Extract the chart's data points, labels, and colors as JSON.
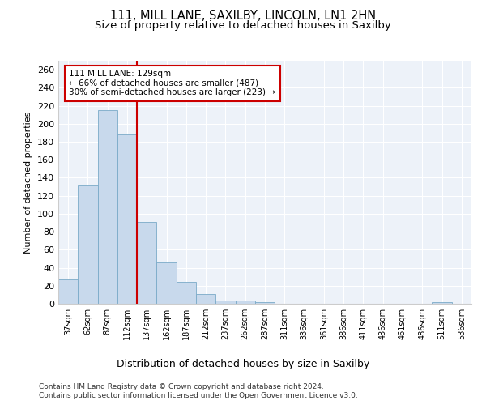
{
  "title1": "111, MILL LANE, SAXILBY, LINCOLN, LN1 2HN",
  "title2": "Size of property relative to detached houses in Saxilby",
  "xlabel": "Distribution of detached houses by size in Saxilby",
  "ylabel": "Number of detached properties",
  "categories": [
    "37sqm",
    "62sqm",
    "87sqm",
    "112sqm",
    "137sqm",
    "162sqm",
    "187sqm",
    "212sqm",
    "237sqm",
    "262sqm",
    "287sqm",
    "311sqm",
    "336sqm",
    "361sqm",
    "386sqm",
    "411sqm",
    "436sqm",
    "461sqm",
    "486sqm",
    "511sqm",
    "536sqm"
  ],
  "values": [
    27,
    131,
    215,
    188,
    91,
    46,
    24,
    11,
    4,
    4,
    2,
    0,
    0,
    0,
    0,
    0,
    0,
    0,
    0,
    2,
    0
  ],
  "bar_color": "#c8d9ec",
  "bar_edge_color": "#7aaac8",
  "vline_x": 3.5,
  "vline_color": "#cc0000",
  "annotation_text": "111 MILL LANE: 129sqm\n← 66% of detached houses are smaller (487)\n30% of semi-detached houses are larger (223) →",
  "annotation_box_color": "white",
  "annotation_box_edge_color": "#cc0000",
  "ylim": [
    0,
    270
  ],
  "yticks": [
    0,
    20,
    40,
    60,
    80,
    100,
    120,
    140,
    160,
    180,
    200,
    220,
    240,
    260
  ],
  "footer1": "Contains HM Land Registry data © Crown copyright and database right 2024.",
  "footer2": "Contains public sector information licensed under the Open Government Licence v3.0.",
  "bg_color": "#edf2f9",
  "grid_color": "#ffffff",
  "title1_fontsize": 10.5,
  "title2_fontsize": 9.5
}
